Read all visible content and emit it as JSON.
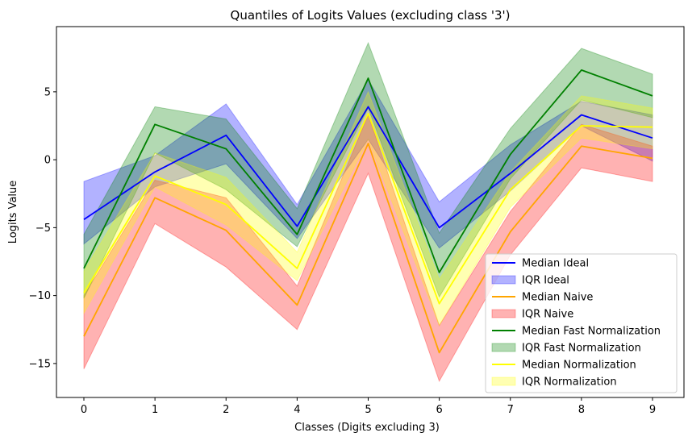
{
  "chart_data": {
    "type": "line",
    "title": "Quantiles of Logits Values (excluding class '3')",
    "xlabel": "Classes (Digits excluding 3)",
    "ylabel": "Logits Value",
    "categories": [
      "0",
      "1",
      "2",
      "4",
      "5",
      "6",
      "7",
      "8",
      "9"
    ],
    "ylim": [
      -17.5,
      9.8
    ],
    "yticks": [
      -15,
      -10,
      -5,
      0,
      5
    ],
    "grid": false,
    "legend_position": "lower right",
    "series": [
      {
        "name": "Median Ideal",
        "color": "#0000ff",
        "median": [
          -4.4,
          -0.9,
          1.8,
          -4.9,
          3.9,
          -5.0,
          -1.0,
          3.3,
          1.6
        ],
        "q1": [
          -6.2,
          -2.0,
          -0.3,
          -5.8,
          1.5,
          -6.5,
          -2.3,
          2.5,
          -0.1
        ],
        "q3": [
          -1.6,
          0.3,
          4.1,
          -3.3,
          5.9,
          -3.1,
          1.1,
          4.3,
          3.3
        ]
      },
      {
        "name": "Median Naive",
        "color": "#ffa500",
        "median": [
          -13.0,
          -2.8,
          -5.2,
          -10.7,
          1.2,
          -14.2,
          -5.3,
          1.0,
          0.1
        ],
        "q1": [
          -15.4,
          -4.7,
          -7.9,
          -12.5,
          -1.0,
          -16.3,
          -7.0,
          -0.6,
          -1.6
        ],
        "q3": [
          -10.0,
          -1.5,
          -2.8,
          -9.3,
          3.3,
          -12.2,
          -3.8,
          2.6,
          1.0
        ]
      },
      {
        "name": "Median Fast Normalization",
        "color": "#008000",
        "median": [
          -8.0,
          2.6,
          0.8,
          -5.5,
          6.0,
          -8.3,
          0.4,
          6.6,
          4.7
        ],
        "q1": [
          -10.2,
          0.5,
          -2.2,
          -6.4,
          3.8,
          -10.1,
          -1.4,
          4.4,
          3.1
        ],
        "q3": [
          -5.5,
          3.9,
          3.0,
          -3.6,
          8.6,
          -5.4,
          2.3,
          8.2,
          6.3
        ]
      },
      {
        "name": "Median Normalization",
        "color": "#ffff00",
        "median": [
          -9.8,
          -1.2,
          -3.3,
          -8.0,
          3.4,
          -10.6,
          -2.2,
          2.5,
          2.4
        ],
        "q1": [
          -11.3,
          -2.0,
          -4.8,
          -8.9,
          1.5,
          -12.2,
          -3.5,
          1.6,
          0.8
        ],
        "q3": [
          -8.2,
          0.5,
          -1.3,
          -6.8,
          5.0,
          -8.8,
          -0.9,
          4.7,
          3.8
        ]
      }
    ],
    "legend": [
      {
        "label": "Median Ideal",
        "kind": "line",
        "color": "#0000ff"
      },
      {
        "label": "IQR Ideal",
        "kind": "patch",
        "color": "#0000ff"
      },
      {
        "label": "Median Naive",
        "kind": "line",
        "color": "#ffa500"
      },
      {
        "label": "IQR Naive",
        "kind": "patch",
        "color": "#ff0000"
      },
      {
        "label": "Median Fast Normalization",
        "kind": "line",
        "color": "#008000"
      },
      {
        "label": "IQR Fast Normalization",
        "kind": "patch",
        "color": "#008000"
      },
      {
        "label": "Median Normalization",
        "kind": "line",
        "color": "#ffff00"
      },
      {
        "label": "IQR Normalization",
        "kind": "patch",
        "color": "#ffff00"
      }
    ],
    "iqr_colors": [
      "#0000ff",
      "#ff0000",
      "#008000",
      "#ffff00"
    ]
  }
}
